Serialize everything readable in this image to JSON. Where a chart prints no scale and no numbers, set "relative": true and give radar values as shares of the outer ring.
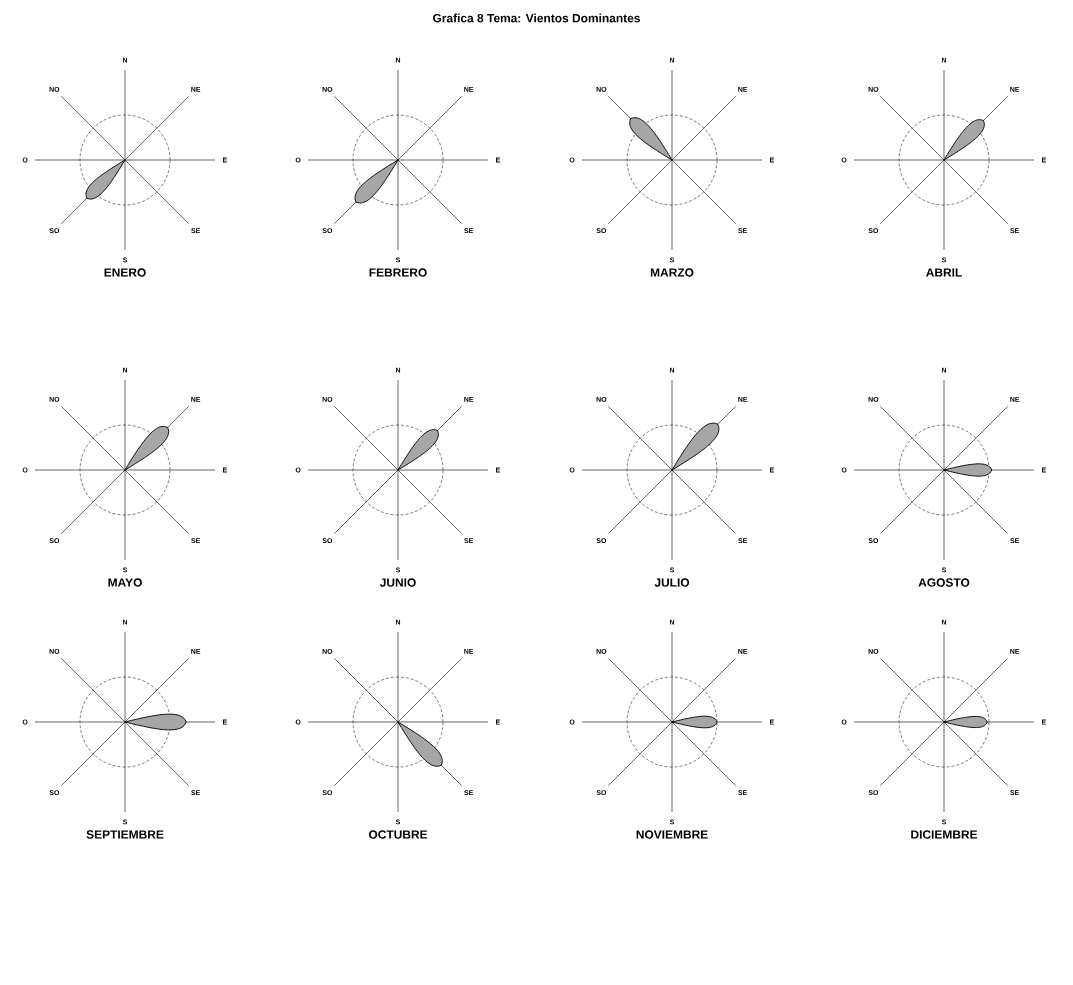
{
  "chart_data": [
    {
      "type": "radar",
      "annotations": [
        "Grafica  8 Tema: Vientos Dominantes"
      ],
      "xlabel": "ENERO",
      "categories": [
        "N",
        "NE",
        "E",
        "SE",
        "S",
        "SO",
        "O",
        "NO"
      ],
      "relative": true,
      "grid": true,
      "series": [
        {
          "color": "#000000",
          "values": [
            0,
            0,
            0,
            0,
            0,
            1.2,
            0,
            0
          ]
        }
      ]
    },
    {
      "type": "radar",
      "xlabel": "FEBRERO",
      "categories": [
        "N",
        "NE",
        "E",
        "SE",
        "S",
        "SO",
        "O",
        "NO"
      ],
      "relative": true,
      "grid": true,
      "series": [
        {
          "color": "#000000",
          "values": [
            0,
            0,
            0,
            0,
            0,
            1.32,
            0,
            0
          ]
        }
      ]
    },
    {
      "type": "radar",
      "xlabel": "MARZO",
      "categories": [
        "N",
        "NE",
        "E",
        "SE",
        "S",
        "SO",
        "O",
        "NO"
      ],
      "relative": true,
      "grid": true,
      "series": [
        {
          "color": "#000000",
          "values": [
            0,
            0,
            0,
            0,
            0,
            0,
            0,
            1.3
          ]
        }
      ]
    },
    {
      "type": "radar",
      "xlabel": "ABRIL",
      "categories": [
        "N",
        "NE",
        "E",
        "SE",
        "S",
        "SO",
        "O",
        "NO"
      ],
      "relative": true,
      "grid": true,
      "series": [
        {
          "color": "#000000",
          "values": [
            0,
            1.24,
            0,
            0,
            0,
            0,
            0,
            0
          ]
        }
      ]
    },
    {
      "type": "radar",
      "xlabel": "MAYO",
      "categories": [
        "N",
        "NE",
        "E",
        "SE",
        "S",
        "SO",
        "O",
        "NO"
      ],
      "relative": true,
      "grid": true,
      "series": [
        {
          "color": "#000000",
          "values": [
            0,
            1.34,
            0,
            0,
            0,
            0,
            0,
            0
          ]
        }
      ]
    },
    {
      "type": "radar",
      "xlabel": "JUNIO",
      "categories": [
        "N",
        "NE",
        "E",
        "SE",
        "S",
        "SO",
        "O",
        "NO"
      ],
      "relative": true,
      "grid": true,
      "series": [
        {
          "color": "#000000",
          "values": [
            0,
            1.24,
            0,
            0,
            0,
            0,
            0,
            0
          ]
        }
      ]
    },
    {
      "type": "radar",
      "xlabel": "JULIO",
      "categories": [
        "N",
        "NE",
        "E",
        "SE",
        "S",
        "SO",
        "O",
        "NO"
      ],
      "relative": true,
      "grid": true,
      "series": [
        {
          "color": "#000000",
          "values": [
            0,
            1.44,
            0,
            0,
            0,
            0,
            0,
            0
          ]
        }
      ]
    },
    {
      "type": "radar",
      "xlabel": "AGOSTO",
      "categories": [
        "N",
        "NE",
        "E",
        "SE",
        "S",
        "SO",
        "O",
        "NO"
      ],
      "relative": true,
      "grid": true,
      "series": [
        {
          "color": "#000000",
          "values": [
            0,
            0,
            1.06,
            0,
            0,
            0,
            0,
            0
          ]
        }
      ]
    },
    {
      "type": "radar",
      "xlabel": "SEPTIEMBRE",
      "categories": [
        "N",
        "NE",
        "E",
        "SE",
        "S",
        "SO",
        "O",
        "NO"
      ],
      "relative": true,
      "grid": true,
      "series": [
        {
          "color": "#000000",
          "values": [
            0,
            0,
            1.36,
            0,
            0,
            0,
            0,
            0
          ]
        }
      ]
    },
    {
      "type": "radar",
      "xlabel": "OCTUBRE",
      "categories": [
        "N",
        "NE",
        "E",
        "SE",
        "S",
        "SO",
        "O",
        "NO"
      ],
      "relative": true,
      "grid": true,
      "series": [
        {
          "color": "#000000",
          "values": [
            0,
            0,
            0,
            1.36,
            0,
            0,
            0,
            0
          ]
        }
      ]
    },
    {
      "type": "radar",
      "xlabel": "NOVIEMBRE",
      "categories": [
        "N",
        "NE",
        "E",
        "SE",
        "S",
        "SO",
        "O",
        "NO"
      ],
      "relative": true,
      "grid": true,
      "series": [
        {
          "color": "#000000",
          "values": [
            0,
            0,
            1.0,
            0,
            0,
            0,
            0,
            0
          ]
        }
      ]
    },
    {
      "type": "radar",
      "xlabel": "DICIEMBRE",
      "categories": [
        "N",
        "NE",
        "E",
        "SE",
        "S",
        "SO",
        "O",
        "NO"
      ],
      "relative": true,
      "grid": true,
      "series": [
        {
          "color": "#000000",
          "values": [
            0,
            0,
            0.96,
            0,
            0,
            0,
            0,
            0
          ]
        }
      ]
    }
  ]
}
